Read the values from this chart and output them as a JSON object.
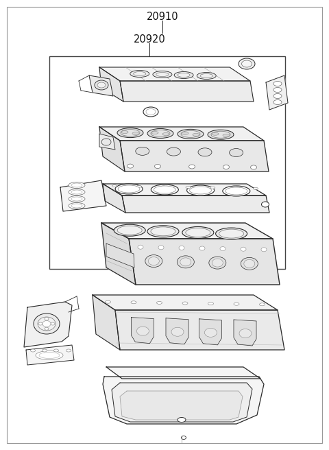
{
  "bg_color": "#ffffff",
  "line_color": "#2a2a2a",
  "fill_color": "#ffffff",
  "inner_fill": "#f8f8f8",
  "label_20910": "20910",
  "label_20920": "20920",
  "label_font_size": 10.5,
  "fig_width": 4.8,
  "fig_height": 6.56,
  "dpi": 100
}
